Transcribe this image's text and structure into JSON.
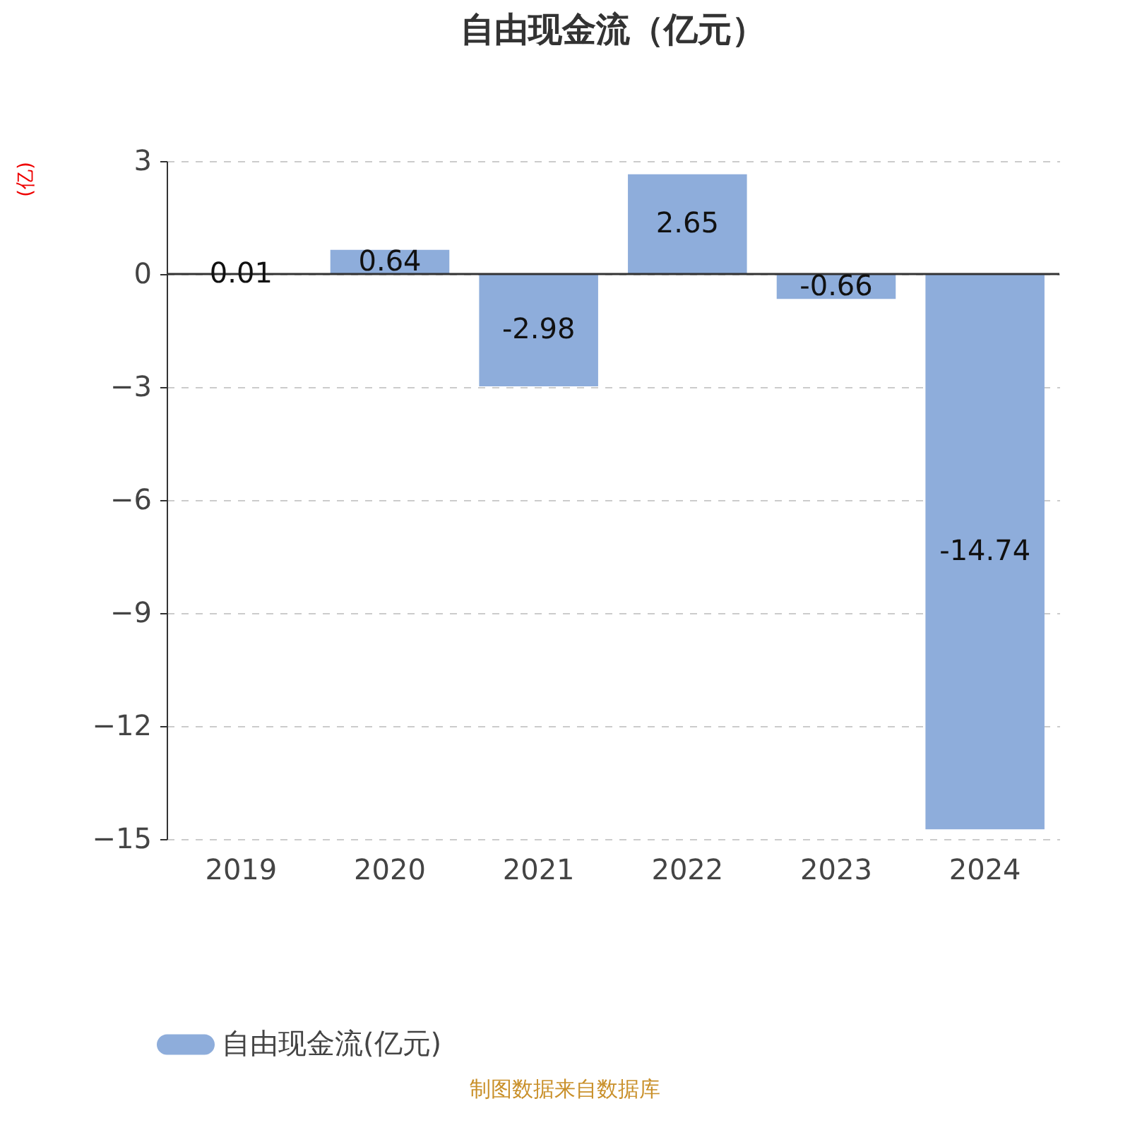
{
  "chart_data": {
    "type": "bar",
    "title": "自由现金流（亿元）",
    "ylabel": "(亿)",
    "categories": [
      "2019",
      "2020",
      "2021",
      "2022",
      "2023",
      "2024"
    ],
    "series": [
      {
        "name": "自由现金流(亿元)",
        "color": "#8eaddb",
        "values": [
          0.01,
          0.64,
          -2.98,
          2.65,
          -0.66,
          -14.74
        ]
      }
    ],
    "ylim": [
      -15,
      3
    ],
    "yticks": [
      -15,
      -12,
      -9,
      -6,
      -3,
      0,
      3
    ],
    "grid": "y",
    "legend": "bottom",
    "data_labels": true,
    "annotations": [
      "制图数据来自数据库"
    ]
  }
}
